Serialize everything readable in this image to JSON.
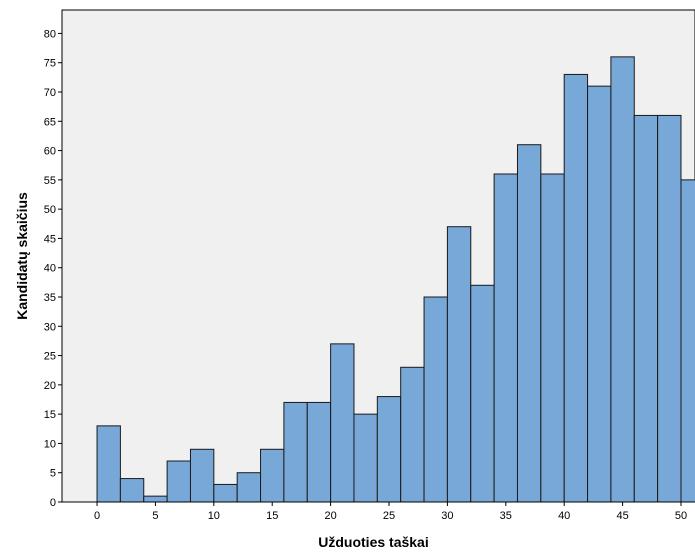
{
  "chart_data": {
    "type": "bar",
    "xlabel": "Užduoties taškai",
    "ylabel": "Kandidatų skaičius",
    "bin_width": 2,
    "bins": [
      {
        "start": 0,
        "value": 13
      },
      {
        "start": 2,
        "value": 4
      },
      {
        "start": 4,
        "value": 1
      },
      {
        "start": 6,
        "value": 7
      },
      {
        "start": 8,
        "value": 9
      },
      {
        "start": 10,
        "value": 3
      },
      {
        "start": 12,
        "value": 5
      },
      {
        "start": 14,
        "value": 9
      },
      {
        "start": 16,
        "value": 17
      },
      {
        "start": 18,
        "value": 17
      },
      {
        "start": 20,
        "value": 27
      },
      {
        "start": 22,
        "value": 15
      },
      {
        "start": 24,
        "value": 18
      },
      {
        "start": 26,
        "value": 23
      },
      {
        "start": 28,
        "value": 35
      },
      {
        "start": 30,
        "value": 47
      },
      {
        "start": 32,
        "value": 37
      },
      {
        "start": 34,
        "value": 56
      },
      {
        "start": 36,
        "value": 61
      },
      {
        "start": 38,
        "value": 56
      },
      {
        "start": 40,
        "value": 73
      },
      {
        "start": 42,
        "value": 71
      },
      {
        "start": 44,
        "value": 76
      },
      {
        "start": 46,
        "value": 66
      },
      {
        "start": 48,
        "value": 66
      },
      {
        "start": 50,
        "value": 55
      }
    ],
    "xlim": [
      -3,
      51.2
    ],
    "ylim": [
      0,
      84
    ],
    "x_ticks": [
      "0",
      "5",
      "10",
      "15",
      "20",
      "25",
      "30",
      "35",
      "40",
      "45",
      "50"
    ],
    "y_ticks": [
      "0",
      "5",
      "10",
      "15",
      "20",
      "25",
      "30",
      "35",
      "40",
      "45",
      "50",
      "55",
      "60",
      "65",
      "70",
      "75",
      "80"
    ],
    "bar_fill": "#77a8d8",
    "bar_stroke": "#1a1a1a",
    "plot_background": "#f0f0f0",
    "grid": false
  }
}
